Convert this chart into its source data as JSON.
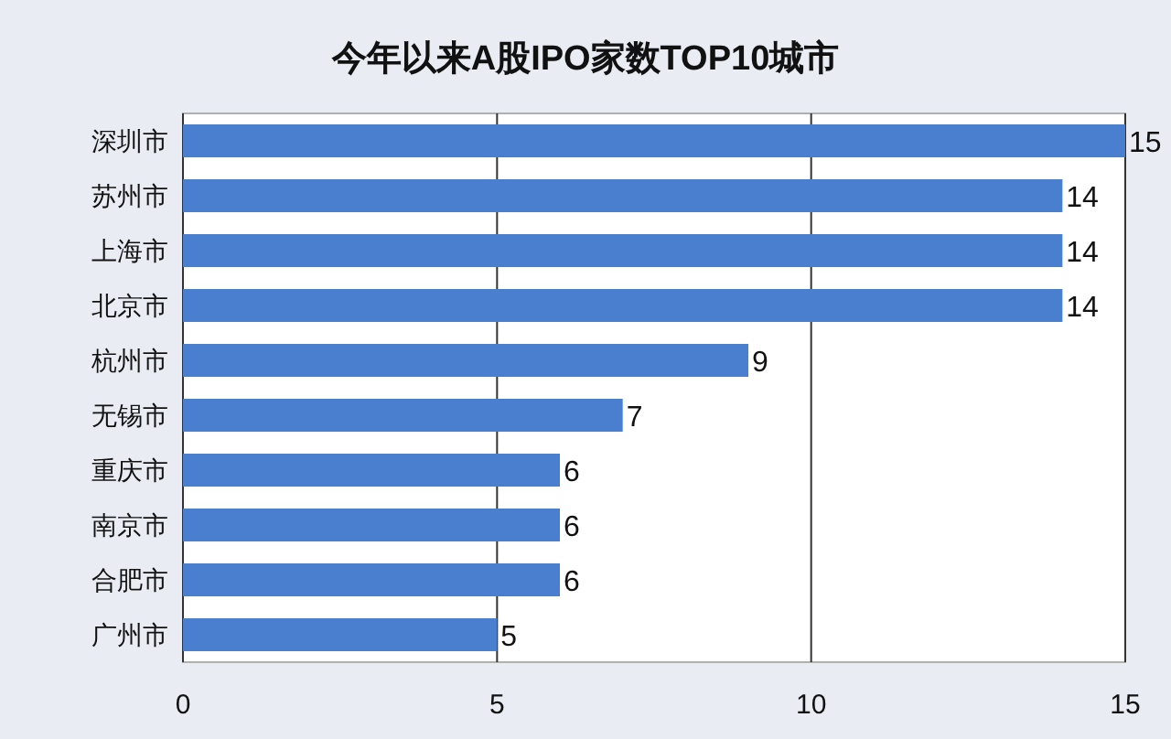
{
  "chart_data": {
    "type": "bar",
    "orientation": "horizontal",
    "title": "今年以来A股IPO家数TOP10城市",
    "categories": [
      "深圳市",
      "苏州市",
      "上海市",
      "北京市",
      "杭州市",
      "无锡市",
      "重庆市",
      "南京市",
      "合肥市",
      "广州市"
    ],
    "values": [
      15,
      14,
      14,
      14,
      9,
      7,
      6,
      6,
      6,
      5
    ],
    "color": "#4a7fd0",
    "xlim": [
      0,
      15
    ],
    "xticks": [
      0,
      5,
      10,
      15
    ],
    "grid": "x",
    "data_labels": true
  }
}
